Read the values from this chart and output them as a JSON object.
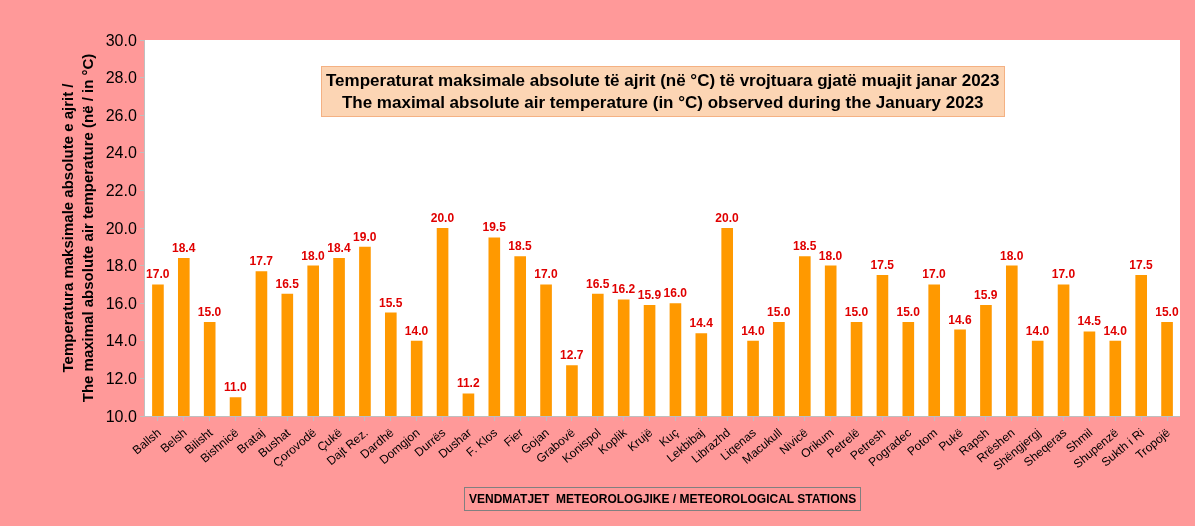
{
  "chart_data": {
    "type": "bar",
    "title": "Temperaturat maksimale absolute të ajrit (në °C) të vrojtuara gjatë muajit janar 2023\nThe maximal absolute air temperature (in °C) observed during the January 2023",
    "xlabel": "VENDMATJET  METEOROLOGJIKE / METEOROLOGICAL STATIONS",
    "ylabel": "Temperatura maksimale absolute e ajrit /\nThe maximal absolute air temperature (në / in °C)",
    "categories": [
      "Ballsh",
      "Belsh",
      "Bilisht",
      "Bishnicë",
      "Brataj",
      "Bushat",
      "Çorovodë",
      "Çukë",
      "Dajt Rez.",
      "Dardhë",
      "Domgjon",
      "Durrës",
      "Dushar",
      "F. Klos",
      "Fier",
      "Gojan",
      "Grabovë",
      "Konispol",
      "Koplik",
      "Krujë",
      "Kuç",
      "Lekbibaj",
      "Librazhd",
      "Liqenas",
      "Macukull",
      "Nivicë",
      "Orikum",
      "Petrelë",
      "Petresh",
      "Pogradec",
      "Potom",
      "Pukë",
      "Rapsh",
      "Rrëshen",
      "Shëngjergj",
      "Sheqeras",
      "Shmil",
      "Shupenzë",
      "Sukth i Ri",
      "Tropojë"
    ],
    "values": [
      17.0,
      18.4,
      15.0,
      11.0,
      17.7,
      16.5,
      18.0,
      18.4,
      19.0,
      15.5,
      14.0,
      20.0,
      11.2,
      19.5,
      18.5,
      17.0,
      12.7,
      16.5,
      16.2,
      15.9,
      16.0,
      14.4,
      20.0,
      14.0,
      15.0,
      18.5,
      18.0,
      15.0,
      17.5,
      15.0,
      17.0,
      14.6,
      15.9,
      18.0,
      14.0,
      17.0,
      14.5,
      14.0,
      17.5,
      15.0
    ],
    "value_labels": [
      "17.0",
      "18.4",
      "15.0",
      "11.0",
      "17.7",
      "16.5",
      "18.0",
      "18.4",
      "19.0",
      "15.5",
      "14.0",
      "20.0",
      "11.2",
      "19.5",
      "18.5",
      "17.0",
      "12.7",
      "16.5",
      "16.2",
      "15.9",
      "16.0",
      "14.4",
      "20.0",
      "14.0",
      "15.0",
      "18.5",
      "18.0",
      "15.0",
      "17.5",
      "15.0",
      "17.0",
      "14.6",
      "15.9",
      "18.0",
      "14.0",
      "17.0",
      "14.5",
      "14.0",
      "17.5",
      "15.0"
    ],
    "color": "#ff9900",
    "ylim": [
      10,
      30
    ],
    "yticks": [
      {
        "value": 10,
        "label": "10.0"
      },
      {
        "value": 12,
        "label": "12.0"
      },
      {
        "value": 14,
        "label": "14.0"
      },
      {
        "value": 16,
        "label": "16.0"
      },
      {
        "value": 18,
        "label": "18.0"
      },
      {
        "value": 20,
        "label": "20.0"
      },
      {
        "value": 22,
        "label": "22.0"
      },
      {
        "value": 24,
        "label": "24.0"
      },
      {
        "value": 26,
        "label": "26.0"
      },
      {
        "value": 28,
        "label": "28.0"
      },
      {
        "value": 30,
        "label": "30.0"
      }
    ],
    "grid": false
  }
}
